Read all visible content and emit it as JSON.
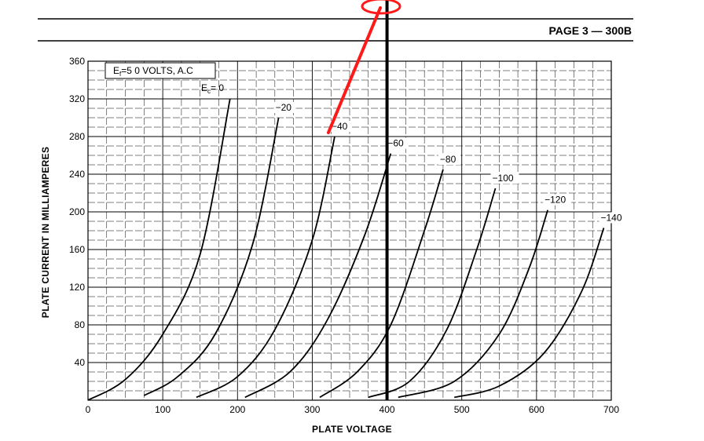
{
  "header": {
    "page_label": "PAGE 3 — 300B"
  },
  "chart_data": {
    "type": "line",
    "title": "",
    "xlabel": "PLATE VOLTAGE",
    "ylabel": "PLATE CURRENT IN MILLIAMPERES",
    "xlim": [
      0,
      700
    ],
    "ylim": [
      0,
      360
    ],
    "x_ticks": [
      0,
      100,
      200,
      300,
      400,
      500,
      600,
      700
    ],
    "y_ticks": [
      40,
      80,
      120,
      160,
      200,
      240,
      280,
      320,
      360
    ],
    "grid": true,
    "info_box": {
      "line1_prefix": "E",
      "line1_sub": "f",
      "line1_rest": "=5 0  VOLTS, A.C"
    },
    "series_title": {
      "prefix": "E",
      "sub": "c",
      "rest": "= 0"
    },
    "series": [
      {
        "name": "0",
        "points": [
          [
            0,
            0
          ],
          [
            50,
            22
          ],
          [
            100,
            70
          ],
          [
            150,
            155
          ],
          [
            190,
            320
          ]
        ]
      },
      {
        "name": "−20",
        "points": [
          [
            75,
            5
          ],
          [
            120,
            25
          ],
          [
            170,
            70
          ],
          [
            220,
            165
          ],
          [
            255,
            300
          ]
        ]
      },
      {
        "name": "−40",
        "points": [
          [
            145,
            3
          ],
          [
            200,
            25
          ],
          [
            250,
            75
          ],
          [
            300,
            170
          ],
          [
            330,
            280
          ]
        ]
      },
      {
        "name": "−60",
        "points": [
          [
            210,
            3
          ],
          [
            270,
            30
          ],
          [
            320,
            85
          ],
          [
            370,
            175
          ],
          [
            405,
            262
          ]
        ]
      },
      {
        "name": "−80",
        "points": [
          [
            310,
            3
          ],
          [
            360,
            30
          ],
          [
            405,
            80
          ],
          [
            450,
            180
          ],
          [
            475,
            245
          ]
        ]
      },
      {
        "name": "−100",
        "points": [
          [
            375,
            3
          ],
          [
            430,
            20
          ],
          [
            480,
            75
          ],
          [
            520,
            160
          ],
          [
            545,
            225
          ]
        ]
      },
      {
        "name": "−120",
        "points": [
          [
            415,
            3
          ],
          [
            490,
            20
          ],
          [
            550,
            70
          ],
          [
            590,
            140
          ],
          [
            615,
            202
          ]
        ]
      },
      {
        "name": "−140",
        "points": [
          [
            490,
            3
          ],
          [
            550,
            15
          ],
          [
            610,
            50
          ],
          [
            660,
            115
          ],
          [
            690,
            183
          ]
        ]
      }
    ],
    "annotations": {
      "vertical_marker_x": 400,
      "marker_color": "#000000",
      "highlight_color": "#ff1a1a"
    }
  }
}
